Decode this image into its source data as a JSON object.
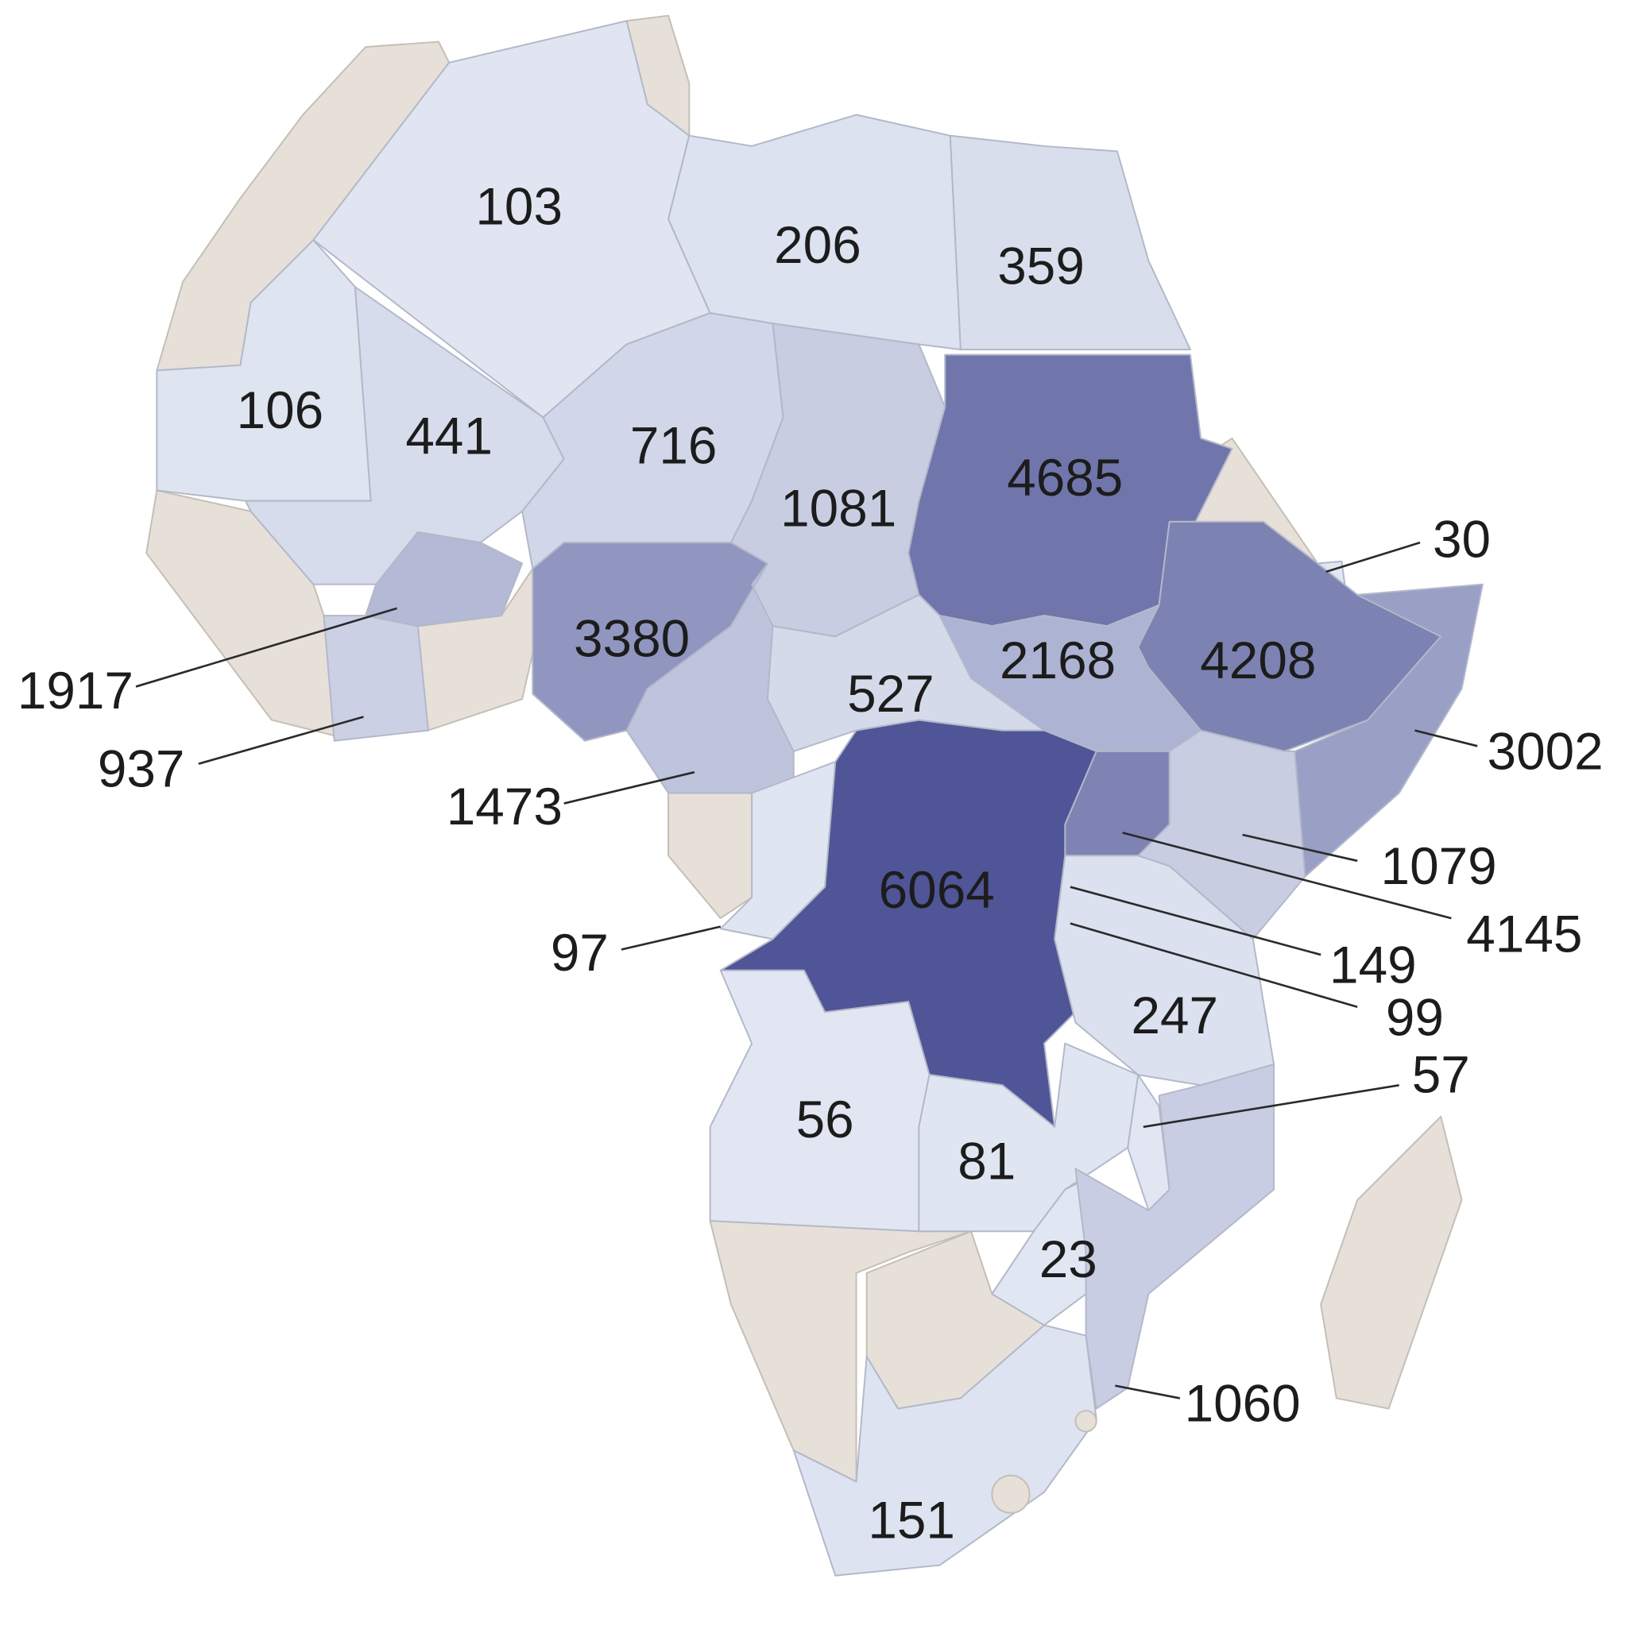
{
  "map_data": {
    "type": "choropleth",
    "values": [
      103,
      206,
      359,
      106,
      441,
      716,
      1081,
      4685,
      30,
      1917,
      937,
      3380,
      1473,
      527,
      2168,
      4208,
      3002,
      1079,
      4145,
      149,
      99,
      97,
      6064,
      247,
      57,
      56,
      81,
      23,
      1060,
      151
    ],
    "color_scale": [
      "#e2e7f3",
      "#4f5596"
    ]
  }
}
